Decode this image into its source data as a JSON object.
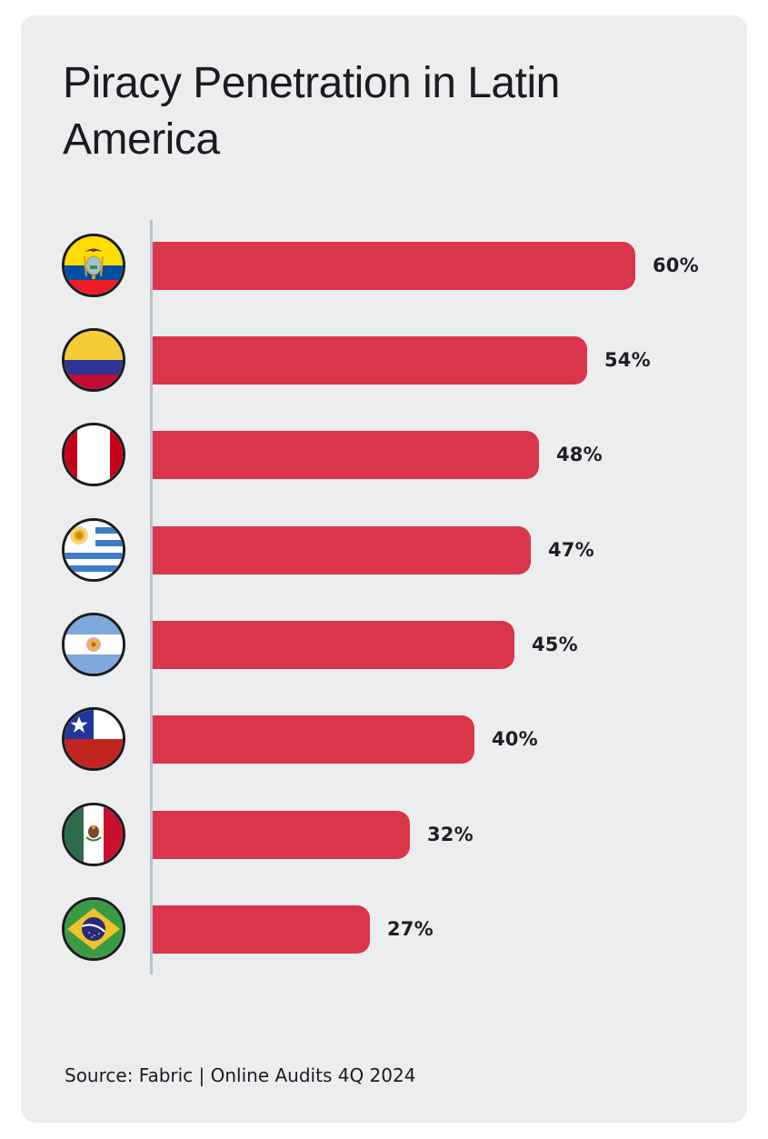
{
  "card": {
    "background": "#ECEDEF"
  },
  "title": "Piracy Penetration in Latin America",
  "source": "Source: Fabric | Online Audits 4Q 2024",
  "bar_color": "#DA354B",
  "chart_data": {
    "type": "bar",
    "orientation": "horizontal",
    "title": "Piracy Penetration in Latin America",
    "xlabel": "",
    "ylabel": "",
    "categories": [
      "Ecuador",
      "Colombia",
      "Peru",
      "Uruguay",
      "Argentina",
      "Chile",
      "Mexico",
      "Brazil"
    ],
    "values": [
      60,
      54,
      48,
      47,
      45,
      40,
      32,
      27
    ],
    "value_labels": [
      "60%",
      "54%",
      "48%",
      "47%",
      "45%",
      "40%",
      "32%",
      "27%"
    ],
    "unit": "%",
    "category_markers": "circular country flags",
    "grid": false,
    "legend": null,
    "source": "Source: Fabric | Online Audits 4Q 2024"
  },
  "rows": [
    {
      "country": "Ecuador",
      "flag": "ecuador-flag-icon",
      "label": "60%"
    },
    {
      "country": "Colombia",
      "flag": "colombia-flag-icon",
      "label": "54%"
    },
    {
      "country": "Peru",
      "flag": "peru-flag-icon",
      "label": "48%"
    },
    {
      "country": "Uruguay",
      "flag": "uruguay-flag-icon",
      "label": "47%"
    },
    {
      "country": "Argentina",
      "flag": "argentina-flag-icon",
      "label": "45%"
    },
    {
      "country": "Chile",
      "flag": "chile-flag-icon",
      "label": "40%"
    },
    {
      "country": "Mexico",
      "flag": "mexico-flag-icon",
      "label": "32%"
    },
    {
      "country": "Brazil",
      "flag": "brazil-flag-icon",
      "label": "27%"
    }
  ]
}
